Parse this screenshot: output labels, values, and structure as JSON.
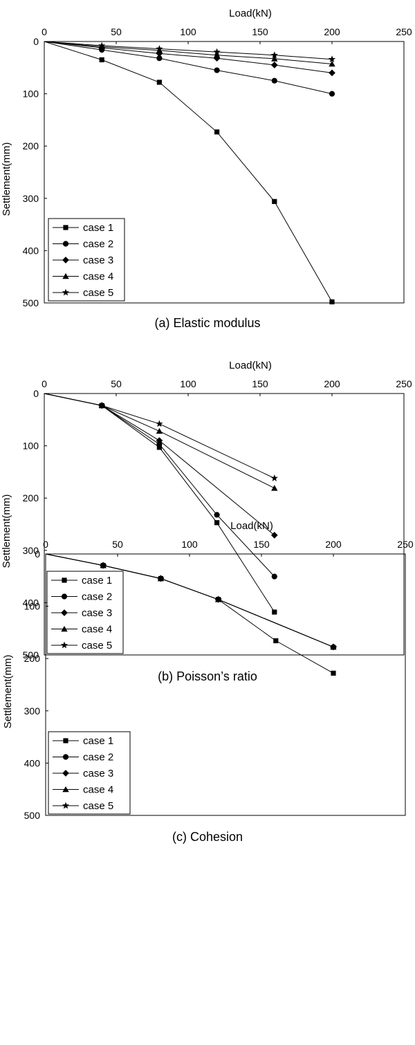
{
  "chart_data": [
    {
      "type": "line",
      "caption": "(a) Elastic modulus",
      "xlabel": "Load(kN)",
      "ylabel": "Settlement(mm)",
      "xlim": [
        0,
        250
      ],
      "ylim": [
        0,
        500
      ],
      "y_inverted": true,
      "x_axis_position": "top",
      "x_ticks": [
        0,
        50,
        100,
        150,
        200,
        250
      ],
      "y_ticks": [
        0,
        100,
        200,
        300,
        400,
        500
      ],
      "legend_position": "bottom-left",
      "grid": false,
      "series": [
        {
          "name": "case 1",
          "marker": "square",
          "x": [
            0,
            40,
            80,
            120,
            160,
            200
          ],
          "y": [
            0,
            35,
            78,
            173,
            306,
            498
          ]
        },
        {
          "name": "case 2",
          "marker": "circle",
          "x": [
            0,
            40,
            80,
            120,
            160,
            200
          ],
          "y": [
            0,
            16,
            32,
            55,
            75,
            100
          ]
        },
        {
          "name": "case 3",
          "marker": "diamond",
          "x": [
            0,
            40,
            80,
            120,
            160,
            200
          ],
          "y": [
            0,
            12,
            23,
            32,
            45,
            60
          ]
        },
        {
          "name": "case 4",
          "marker": "triangle",
          "x": [
            0,
            40,
            80,
            120,
            160,
            200
          ],
          "y": [
            0,
            10,
            17,
            26,
            33,
            43
          ]
        },
        {
          "name": "case 5",
          "marker": "star",
          "x": [
            0,
            40,
            80,
            120,
            160,
            200
          ],
          "y": [
            0,
            8,
            14,
            20,
            26,
            34
          ]
        }
      ]
    },
    {
      "type": "line",
      "caption": "(b) Poisson’s ratio",
      "xlabel": "Load(kN)",
      "ylabel": "Settlement(mm)",
      "xlim": [
        0,
        250
      ],
      "ylim": [
        0,
        500
      ],
      "y_inverted": true,
      "x_axis_position": "top",
      "x_ticks": [
        0,
        50,
        100,
        150,
        200,
        250
      ],
      "y_ticks": [
        0,
        100,
        200,
        300,
        400,
        500
      ],
      "legend_position": "bottom-left",
      "grid": false,
      "series": [
        {
          "name": "case 1",
          "marker": "square",
          "x": [
            0,
            40,
            80,
            120,
            160
          ],
          "y": [
            0,
            23,
            103,
            247,
            418
          ]
        },
        {
          "name": "case 2",
          "marker": "circle",
          "x": [
            0,
            40,
            80,
            120,
            160
          ],
          "y": [
            0,
            23,
            97,
            232,
            350
          ]
        },
        {
          "name": "case 3",
          "marker": "diamond",
          "x": [
            0,
            40,
            80,
            120,
            160
          ],
          "y": [
            0,
            23,
            90,
            0,
            271
          ],
          "skip": [
            3
          ]
        },
        {
          "name": "case 4",
          "marker": "triangle",
          "x": [
            0,
            40,
            80,
            160
          ],
          "y": [
            0,
            23,
            72,
            181
          ]
        },
        {
          "name": "case 5",
          "marker": "star",
          "x": [
            0,
            40,
            80,
            160
          ],
          "y": [
            0,
            23,
            58,
            162
          ]
        }
      ]
    },
    {
      "type": "line",
      "caption": "(c) Cohesion",
      "xlabel": "Load(kN)",
      "ylabel": "Settlement(mm)",
      "xlim": [
        0,
        250
      ],
      "ylim": [
        0,
        500
      ],
      "y_inverted": true,
      "x_axis_position": "top",
      "x_ticks": [
        0,
        50,
        100,
        150,
        200,
        250
      ],
      "y_ticks": [
        0,
        100,
        200,
        300,
        400,
        500
      ],
      "legend_position": "bottom-left",
      "grid": false,
      "series": [
        {
          "name": "case 1",
          "marker": "square",
          "x": [
            0,
            40,
            80,
            120,
            160,
            200
          ],
          "y": [
            0,
            22,
            47,
            87,
            166,
            228
          ]
        },
        {
          "name": "case 2",
          "marker": "circle",
          "x": [
            0,
            40,
            80,
            120,
            200
          ],
          "y": [
            0,
            22,
            47,
            87,
            178
          ]
        },
        {
          "name": "case 3",
          "marker": "diamond",
          "x": [
            0,
            40,
            80,
            120,
            200
          ],
          "y": [
            0,
            22,
            47,
            87,
            178
          ]
        },
        {
          "name": "case 4",
          "marker": "triangle",
          "x": [
            0,
            40,
            80,
            120,
            200
          ],
          "y": [
            0,
            22,
            47,
            87,
            178
          ]
        },
        {
          "name": "case 5",
          "marker": "star",
          "x": [
            0,
            40,
            80,
            120,
            200
          ],
          "y": [
            0,
            22,
            47,
            87,
            178
          ]
        }
      ]
    }
  ]
}
